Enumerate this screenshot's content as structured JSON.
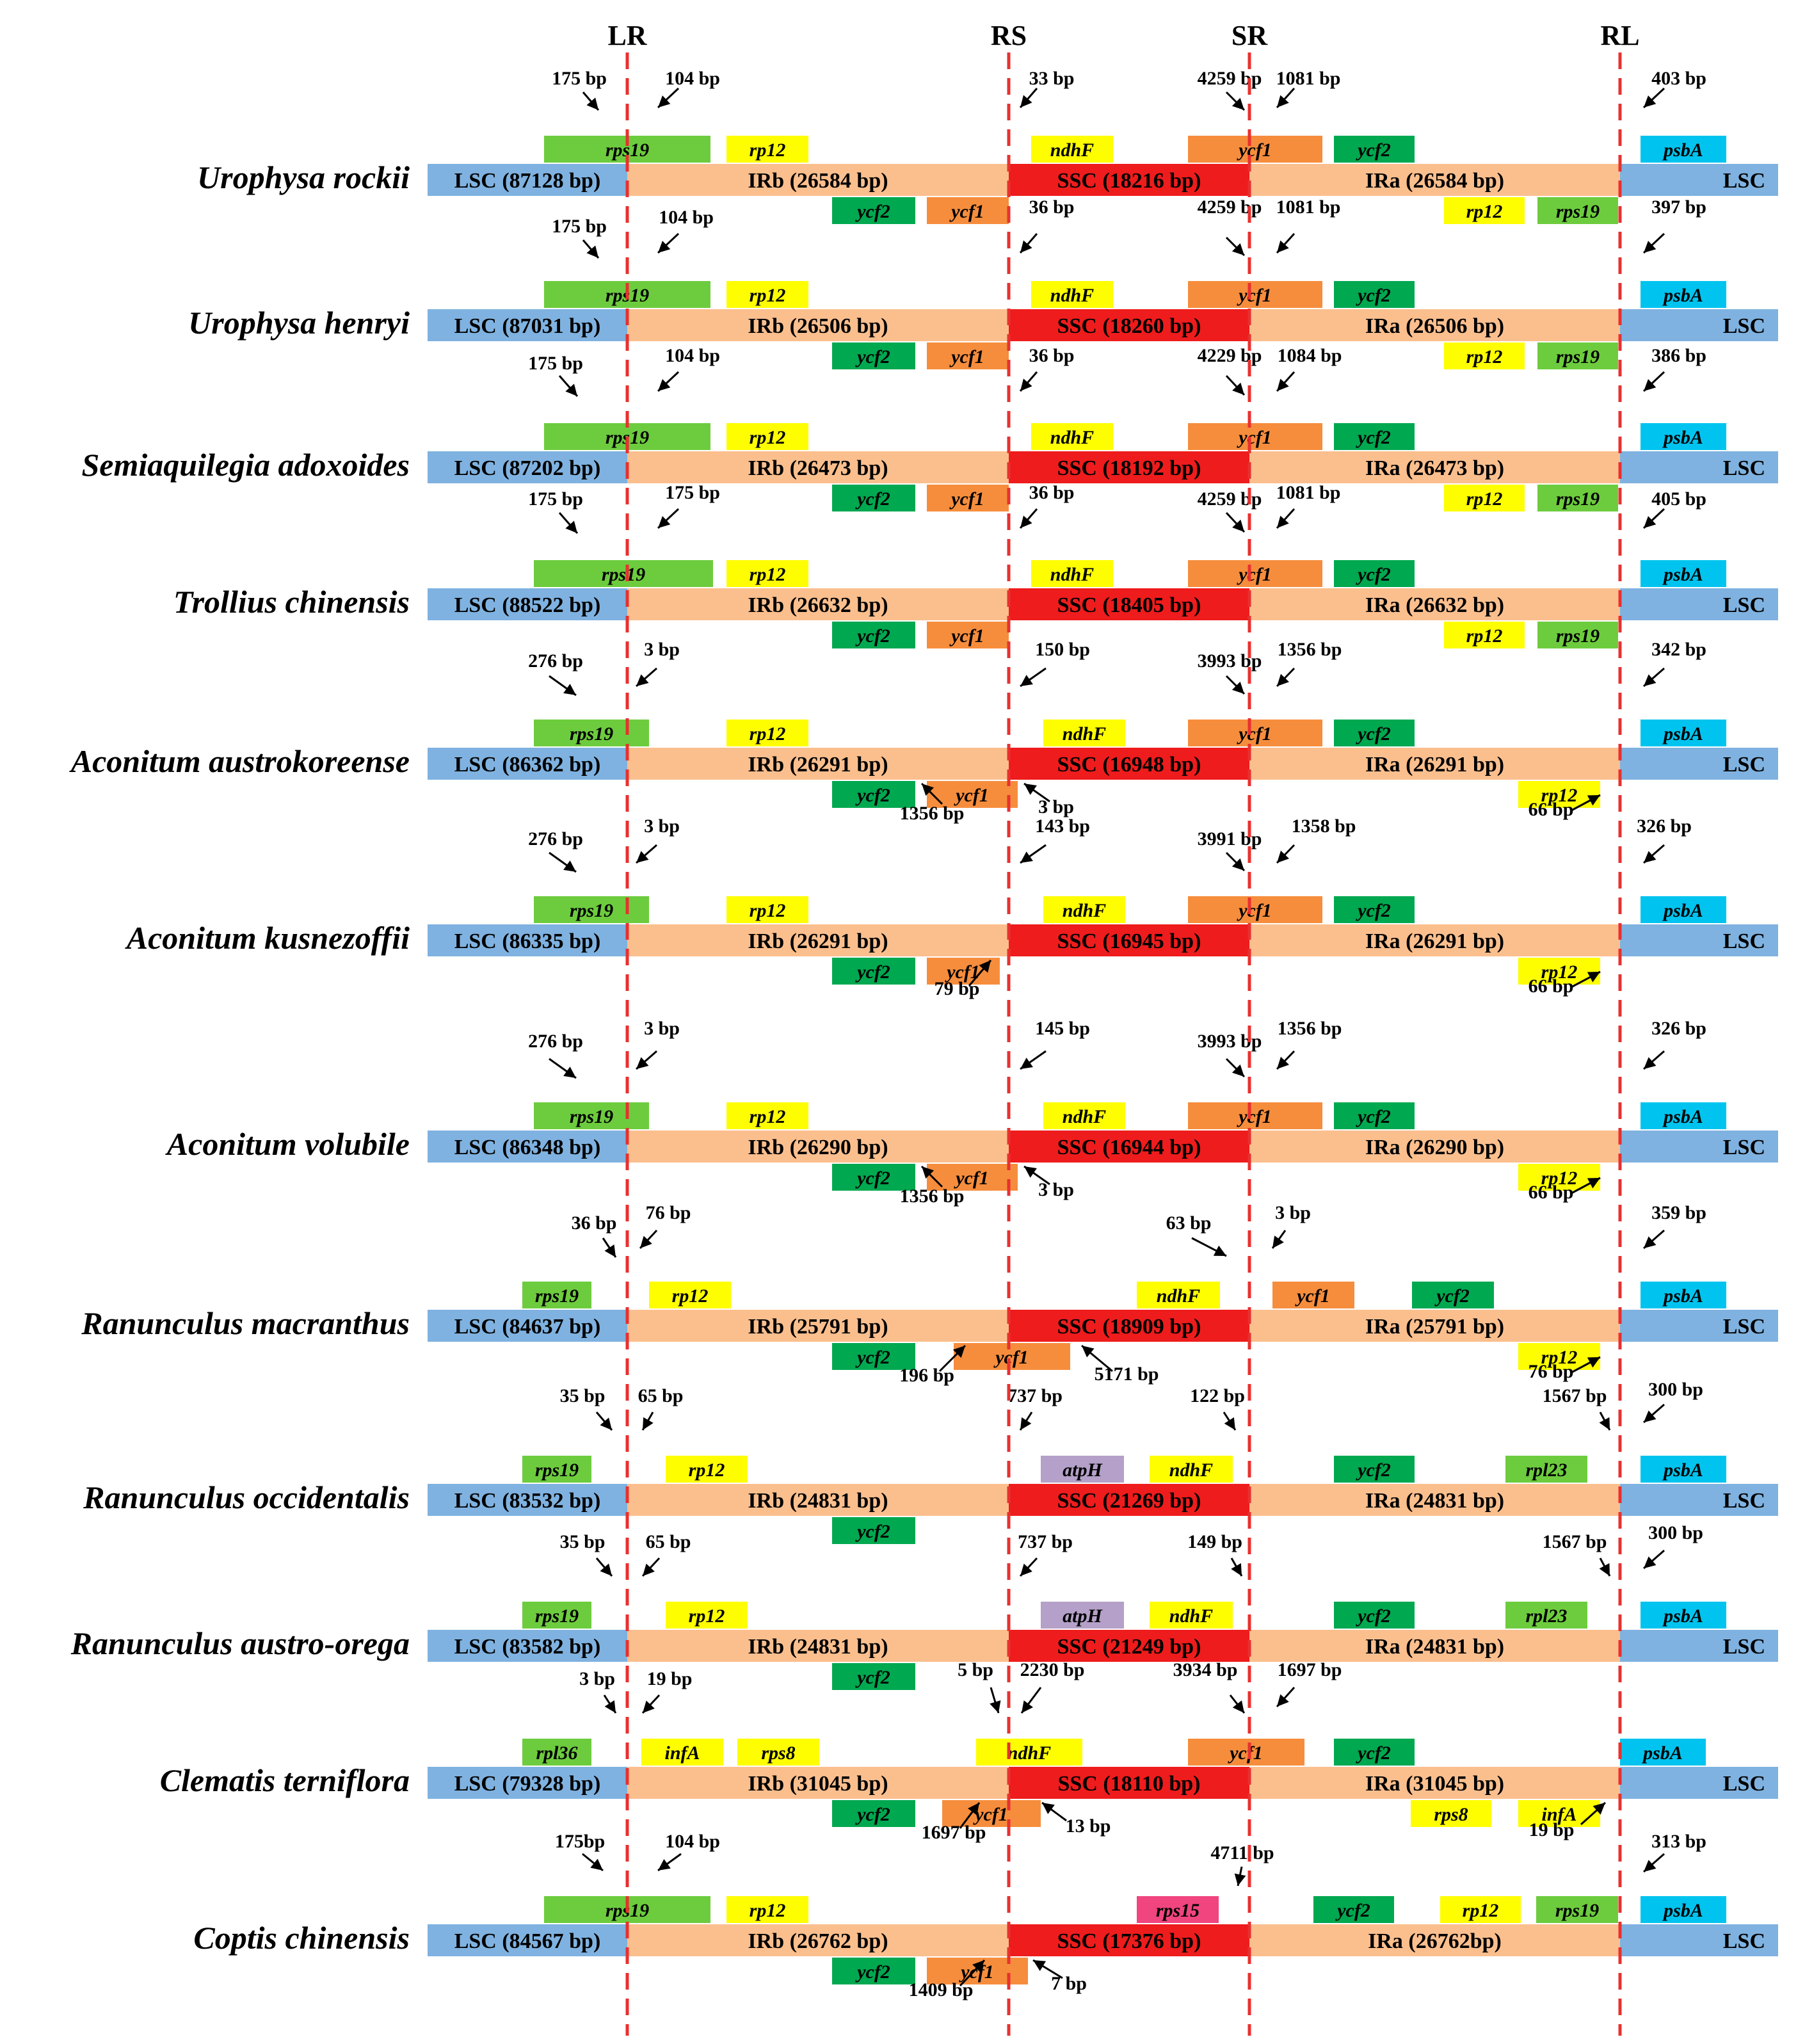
{
  "boundaries": [
    {
      "key": "LR",
      "label": "LR"
    },
    {
      "key": "RS",
      "label": "RS"
    },
    {
      "key": "SR",
      "label": "SR"
    },
    {
      "key": "RL",
      "label": "RL"
    }
  ],
  "colors": {
    "lsc": "#7fb2e0",
    "ir": "#fbbf8e",
    "ssc": "#ee1c1c",
    "boundary": "#e8312f",
    "rps19": "#6dcc3e",
    "rp12": "#fefe00",
    "ycf2": "#00a850",
    "ycf1": "#f68d3d",
    "ndhF": "#fefe00",
    "psbA": "#00c4ef",
    "atpH": "#b4a0c8",
    "rpl23": "#6dcc3e",
    "rpl36": "#6dcc3e",
    "infA": "#fefe00",
    "rps8": "#fefe00",
    "rps15": "#f0457f"
  },
  "species": [
    {
      "name": "Urophysa rockii",
      "regions": {
        "lsc": "LSC (87128 bp)",
        "irb": "IRb (26584 bp)",
        "ssc": "SSC (18216 bp)",
        "ira": "IRa (26584 bp)",
        "lsc_end": "LSC"
      },
      "genes": [
        {
          "label": "rps19",
          "color": "rps19"
        },
        {
          "label": "rp12",
          "color": "rp12"
        },
        {
          "label": "ndhF",
          "color": "ndhF"
        },
        {
          "label": "ycf1",
          "color": "ycf1"
        },
        {
          "label": "ycf2",
          "color": "ycf2"
        },
        {
          "label": "psbA",
          "color": "psbA"
        },
        {
          "label": "ycf2",
          "color": "ycf2"
        },
        {
          "label": "ycf1",
          "color": "ycf1"
        },
        {
          "label": "rp12",
          "color": "rp12"
        },
        {
          "label": "rps19",
          "color": "rps19"
        }
      ],
      "annotations": [
        "175 bp",
        "104 bp",
        "33 bp",
        "4259 bp",
        "1081 bp",
        "403 bp"
      ]
    },
    {
      "name": "Urophysa henryi",
      "regions": {
        "lsc": "LSC (87031 bp)",
        "irb": "IRb (26506 bp)",
        "ssc": "SSC (18260 bp)",
        "ira": "IRa (26506 bp)",
        "lsc_end": "LSC"
      },
      "genes": [
        {
          "label": "rps19",
          "color": "rps19"
        },
        {
          "label": "rp12",
          "color": "rp12"
        },
        {
          "label": "ndhF",
          "color": "ndhF"
        },
        {
          "label": "ycf1",
          "color": "ycf1"
        },
        {
          "label": "ycf2",
          "color": "ycf2"
        },
        {
          "label": "psbA",
          "color": "psbA"
        },
        {
          "label": "ycf2",
          "color": "ycf2"
        },
        {
          "label": "ycf1",
          "color": "ycf1"
        },
        {
          "label": "rp12",
          "color": "rp12"
        },
        {
          "label": "rps19",
          "color": "rps19"
        }
      ],
      "annotations": [
        "175 bp",
        "104 bp",
        "36 bp",
        "4259 bp",
        "1081 bp",
        "397 bp"
      ]
    },
    {
      "name": "Semiaquilegia adoxoides",
      "regions": {
        "lsc": "LSC (87202 bp)",
        "irb": "IRb (26473 bp)",
        "ssc": "SSC (18192 bp)",
        "ira": "IRa (26473 bp)",
        "lsc_end": "LSC"
      },
      "genes": [
        {
          "label": "rps19",
          "color": "rps19"
        },
        {
          "label": "rp12",
          "color": "rp12"
        },
        {
          "label": "ndhF",
          "color": "ndhF"
        },
        {
          "label": "ycf1",
          "color": "ycf1"
        },
        {
          "label": "ycf2",
          "color": "ycf2"
        },
        {
          "label": "psbA",
          "color": "psbA"
        },
        {
          "label": "ycf2",
          "color": "ycf2"
        },
        {
          "label": "ycf1",
          "color": "ycf1"
        },
        {
          "label": "rp12",
          "color": "rp12"
        },
        {
          "label": "rps19",
          "color": "rps19"
        }
      ],
      "annotations": [
        "175 bp",
        "104 bp",
        "36 bp",
        "4229 bp",
        "1084 bp",
        "386 bp"
      ]
    },
    {
      "name": "Trollius chinensis",
      "regions": {
        "lsc": "LSC (88522 bp)",
        "irb": "IRb (26632 bp)",
        "ssc": "SSC (18405 bp)",
        "ira": "IRa (26632 bp)",
        "lsc_end": "LSC"
      },
      "genes": [
        {
          "label": "rps19",
          "color": "rps19"
        },
        {
          "label": "rp12",
          "color": "rp12"
        },
        {
          "label": "ndhF",
          "color": "ndhF"
        },
        {
          "label": "ycf1",
          "color": "ycf1"
        },
        {
          "label": "ycf2",
          "color": "ycf2"
        },
        {
          "label": "psbA",
          "color": "psbA"
        },
        {
          "label": "ycf2",
          "color": "ycf2"
        },
        {
          "label": "ycf1",
          "color": "ycf1"
        },
        {
          "label": "rp12",
          "color": "rp12"
        },
        {
          "label": "rps19",
          "color": "rps19"
        }
      ],
      "annotations": [
        "175 bp",
        "175 bp",
        "36 bp",
        "4259 bp",
        "1081 bp",
        "405 bp"
      ]
    },
    {
      "name": "Aconitum austrokoreense",
      "regions": {
        "lsc": "LSC (86362 bp)",
        "irb": "IRb (26291 bp)",
        "ssc": "SSC (16948 bp)",
        "ira": "IRa (26291 bp)",
        "lsc_end": "LSC"
      },
      "genes": [
        {
          "label": "rps19",
          "color": "rps19"
        },
        {
          "label": "rp12",
          "color": "rp12"
        },
        {
          "label": "ndhF",
          "color": "ndhF"
        },
        {
          "label": "ycf1",
          "color": "ycf1"
        },
        {
          "label": "ycf2",
          "color": "ycf2"
        },
        {
          "label": "psbA",
          "color": "psbA"
        },
        {
          "label": "ycf2",
          "color": "ycf2"
        },
        {
          "label": "ycf1",
          "color": "ycf1"
        },
        {
          "label": "rp12",
          "color": "rp12"
        }
      ],
      "annotations": [
        "276 bp",
        "3 bp",
        "150 bp",
        "3993 bp",
        "1356 bp",
        "342 bp",
        "1356 bp",
        "3 bp",
        "66 bp"
      ]
    },
    {
      "name": "Aconitum kusnezoffii",
      "regions": {
        "lsc": "LSC (86335 bp)",
        "irb": "IRb (26291 bp)",
        "ssc": "SSC (16945 bp)",
        "ira": "IRa (26291 bp)",
        "lsc_end": "LSC"
      },
      "genes": [
        {
          "label": "rps19",
          "color": "rps19"
        },
        {
          "label": "rp12",
          "color": "rp12"
        },
        {
          "label": "ndhF",
          "color": "ndhF"
        },
        {
          "label": "ycf1",
          "color": "ycf1"
        },
        {
          "label": "ycf2",
          "color": "ycf2"
        },
        {
          "label": "psbA",
          "color": "psbA"
        },
        {
          "label": "ycf2",
          "color": "ycf2"
        },
        {
          "label": "ycf1",
          "color": "ycf1"
        },
        {
          "label": "rp12",
          "color": "rp12"
        }
      ],
      "annotations": [
        "276 bp",
        "3 bp",
        "143 bp",
        "3991 bp",
        "1358 bp",
        "326 bp",
        "79 bp",
        "66 bp"
      ]
    },
    {
      "name": "Aconitum volubile",
      "regions": {
        "lsc": "LSC (86348 bp)",
        "irb": "IRb (26290 bp)",
        "ssc": "SSC (16944 bp)",
        "ira": "IRa (26290 bp)",
        "lsc_end": "LSC"
      },
      "genes": [
        {
          "label": "rps19",
          "color": "rps19"
        },
        {
          "label": "rp12",
          "color": "rp12"
        },
        {
          "label": "ndhF",
          "color": "ndhF"
        },
        {
          "label": "ycf1",
          "color": "ycf1"
        },
        {
          "label": "ycf2",
          "color": "ycf2"
        },
        {
          "label": "psbA",
          "color": "psbA"
        },
        {
          "label": "ycf2",
          "color": "ycf2"
        },
        {
          "label": "ycf1",
          "color": "ycf1"
        },
        {
          "label": "rp12",
          "color": "rp12"
        }
      ],
      "annotations": [
        "276 bp",
        "3 bp",
        "145 bp",
        "3993 bp",
        "1356 bp",
        "326 bp",
        "1356 bp",
        "3 bp",
        "66 bp"
      ]
    },
    {
      "name": "Ranunculus macranthus",
      "regions": {
        "lsc": "LSC (84637 bp)",
        "irb": "IRb (25791 bp)",
        "ssc": "SSC (18909 bp)",
        "ira": "IRa (25791 bp)",
        "lsc_end": "LSC"
      },
      "genes": [
        {
          "label": "rps19",
          "color": "rps19"
        },
        {
          "label": "rp12",
          "color": "rp12"
        },
        {
          "label": "ndhF",
          "color": "ndhF"
        },
        {
          "label": "ycf1",
          "color": "ycf1"
        },
        {
          "label": "ycf2",
          "color": "ycf2"
        },
        {
          "label": "psbA",
          "color": "psbA"
        },
        {
          "label": "ycf2",
          "color": "ycf2"
        },
        {
          "label": "ycf1",
          "color": "ycf1"
        },
        {
          "label": "rp12",
          "color": "rp12"
        }
      ],
      "annotations": [
        "36 bp",
        "76 bp",
        "63 bp",
        "3 bp",
        "359 bp",
        "196 bp",
        "5171 bp",
        "76 bp"
      ]
    },
    {
      "name": "Ranunculus occidentalis",
      "regions": {
        "lsc": "LSC (83532 bp)",
        "irb": "IRb (24831 bp)",
        "ssc": "SSC (21269 bp)",
        "ira": "IRa (24831 bp)",
        "lsc_end": "LSC"
      },
      "genes": [
        {
          "label": "rps19",
          "color": "rps19"
        },
        {
          "label": "rp12",
          "color": "rp12"
        },
        {
          "label": "atpH",
          "color": "atpH"
        },
        {
          "label": "ndhF",
          "color": "ndhF"
        },
        {
          "label": "ycf2",
          "color": "ycf2"
        },
        {
          "label": "rpl23",
          "color": "rpl23"
        },
        {
          "label": "psbA",
          "color": "psbA"
        },
        {
          "label": "ycf2",
          "color": "ycf2"
        }
      ],
      "annotations": [
        "35 bp",
        "65 bp",
        "737 bp",
        "122 bp",
        "1567 bp",
        "300 bp"
      ]
    },
    {
      "name": "Ranunculus austro-orega",
      "regions": {
        "lsc": "LSC (83582 bp)",
        "irb": "IRb (24831 bp)",
        "ssc": "SSC (21249 bp)",
        "ira": "IRa (24831 bp)",
        "lsc_end": "LSC"
      },
      "genes": [
        {
          "label": "rps19",
          "color": "rps19"
        },
        {
          "label": "rp12",
          "color": "rp12"
        },
        {
          "label": "atpH",
          "color": "atpH"
        },
        {
          "label": "ndhF",
          "color": "ndhF"
        },
        {
          "label": "ycf2",
          "color": "ycf2"
        },
        {
          "label": "rpl23",
          "color": "rpl23"
        },
        {
          "label": "psbA",
          "color": "psbA"
        },
        {
          "label": "ycf2",
          "color": "ycf2"
        }
      ],
      "annotations": [
        "35 bp",
        "65 bp",
        "737 bp",
        "149 bp",
        "1567 bp",
        "300 bp"
      ]
    },
    {
      "name": "Clematis terniflora",
      "regions": {
        "lsc": "LSC (79328 bp)",
        "irb": "IRb (31045 bp)",
        "ssc": "SSC (18110 bp)",
        "ira": "IRa (31045 bp)",
        "lsc_end": "LSC"
      },
      "genes": [
        {
          "label": "rpl36",
          "color": "rpl36"
        },
        {
          "label": "infA",
          "color": "infA"
        },
        {
          "label": "rps8",
          "color": "rps8"
        },
        {
          "label": "ndhF",
          "color": "ndhF"
        },
        {
          "label": "ycf1",
          "color": "ycf1"
        },
        {
          "label": "ycf2",
          "color": "ycf2"
        },
        {
          "label": "psbA",
          "color": "psbA"
        },
        {
          "label": "ycf2",
          "color": "ycf2"
        },
        {
          "label": "ycf1",
          "color": "ycf1"
        },
        {
          "label": "rps8",
          "color": "rps8"
        },
        {
          "label": "infA",
          "color": "infA"
        }
      ],
      "annotations": [
        "3 bp",
        "19 bp",
        "5 bp",
        "2230 bp",
        "3934 bp",
        "1697 bp",
        "1697 bp",
        "13 bp",
        "19 bp"
      ]
    },
    {
      "name": "Coptis chinensis",
      "regions": {
        "lsc": "LSC (84567 bp)",
        "irb": "IRb (26762 bp)",
        "ssc": "SSC (17376 bp)",
        "ira": "IRa (26762bp)",
        "lsc_end": "LSC"
      },
      "genes": [
        {
          "label": "rps19",
          "color": "rps19"
        },
        {
          "label": "rp12",
          "color": "rp12"
        },
        {
          "label": "rps15",
          "color": "rps15"
        },
        {
          "label": "ycf2",
          "color": "ycf2"
        },
        {
          "label": "rp12",
          "color": "rp12"
        },
        {
          "label": "rps19",
          "color": "rps19"
        },
        {
          "label": "psbA",
          "color": "psbA"
        },
        {
          "label": "ycf2",
          "color": "ycf2"
        },
        {
          "label": "ycf1",
          "color": "ycf1"
        }
      ],
      "annotations": [
        "175bp",
        "104 bp",
        "4711 bp",
        "313 bp",
        "1409 bp",
        "7 bp"
      ]
    }
  ]
}
